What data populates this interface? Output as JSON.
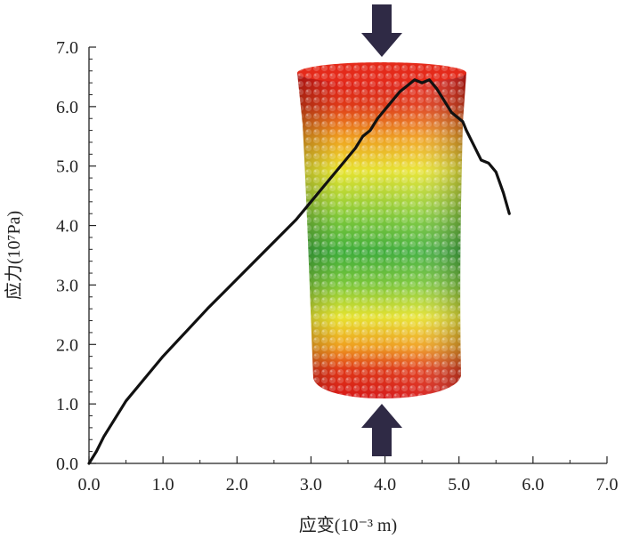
{
  "chart_data": {
    "type": "line",
    "title": "",
    "xlabel": "应变(10⁻³ m)",
    "ylabel": "应力(10⁷Pa)",
    "xlim": [
      0,
      7.0
    ],
    "ylim": [
      0,
      7.0
    ],
    "x_ticks": [
      "0.0",
      "1.0",
      "2.0",
      "3.0",
      "4.0",
      "5.0",
      "6.0",
      "7.0"
    ],
    "y_ticks": [
      "0.0",
      "1.0",
      "2.0",
      "3.0",
      "4.0",
      "5.0",
      "6.0",
      "7.0"
    ],
    "grid": false,
    "series": [
      {
        "color": "#111111",
        "x": [
          0.0,
          0.1,
          0.2,
          0.3,
          0.5,
          0.7,
          1.0,
          1.3,
          1.6,
          2.0,
          2.4,
          2.8,
          3.0,
          3.2,
          3.4,
          3.6,
          3.7,
          3.8,
          3.9,
          4.0,
          4.1,
          4.2,
          4.3,
          4.4,
          4.5,
          4.6,
          4.7,
          4.8,
          4.9,
          5.0,
          5.05,
          5.1,
          5.2,
          5.3,
          5.4,
          5.5,
          5.6,
          5.68
        ],
        "y": [
          0.0,
          0.2,
          0.45,
          0.65,
          1.05,
          1.35,
          1.8,
          2.2,
          2.6,
          3.1,
          3.6,
          4.1,
          4.4,
          4.7,
          5.0,
          5.3,
          5.5,
          5.6,
          5.8,
          5.95,
          6.1,
          6.25,
          6.35,
          6.45,
          6.4,
          6.45,
          6.3,
          6.1,
          5.9,
          5.8,
          5.75,
          5.6,
          5.35,
          5.1,
          5.05,
          4.9,
          4.55,
          4.2
        ]
      }
    ],
    "inset": {
      "description_icon": "particle-cylinder-specimen",
      "colors": [
        "#e02020",
        "#f0a020",
        "#e8e830",
        "#40b040"
      ],
      "arrows": [
        "load-arrow-top",
        "load-arrow-bottom"
      ],
      "arrow_color": "#2f2a45"
    }
  }
}
